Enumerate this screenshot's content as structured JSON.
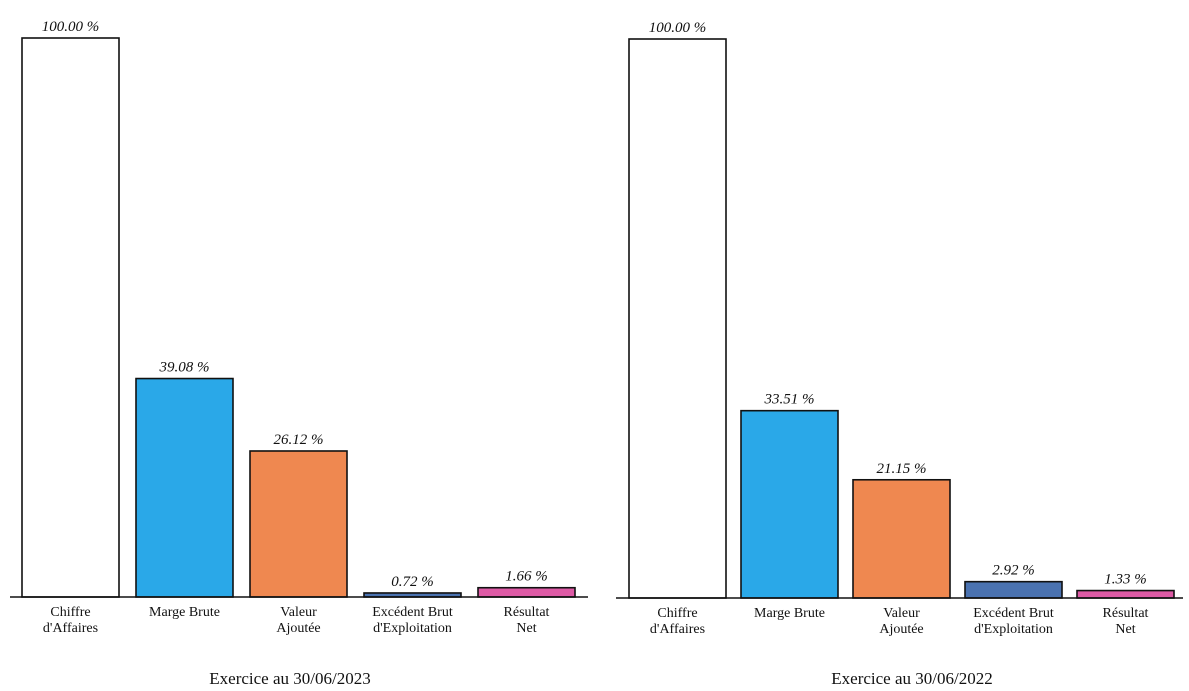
{
  "colors": {
    "chiffre": "#ffffff",
    "marge": "#2aa8e8",
    "valeur": "#ef8850",
    "ebe": "#4a72b0",
    "resultat": "#dd5aa5",
    "stroke": "#111111"
  },
  "chart_data": [
    {
      "type": "bar",
      "caption": "Exercice au  30/06/2023",
      "categories": [
        [
          "Chiffre",
          "d'Affaires"
        ],
        [
          "Marge Brute"
        ],
        [
          "Valeur",
          "Ajoutée"
        ],
        [
          "Excédent Brut",
          "d'Exploitation"
        ],
        [
          "Résultat",
          "Net"
        ]
      ],
      "values": [
        100.0,
        39.08,
        26.12,
        0.72,
        1.66
      ],
      "value_labels": [
        "100.00 %",
        "39.08 %",
        "26.12 %",
        "0.72 %",
        "1.66 %"
      ],
      "ylim": [
        0,
        100
      ]
    },
    {
      "type": "bar",
      "caption": "Exercice au  30/06/2022",
      "categories": [
        [
          "Chiffre",
          "d'Affaires"
        ],
        [
          "Marge Brute"
        ],
        [
          "Valeur",
          "Ajoutée"
        ],
        [
          "Excédent Brut",
          "d'Exploitation"
        ],
        [
          "Résultat",
          "Net"
        ]
      ],
      "values": [
        100.0,
        33.51,
        21.15,
        2.92,
        1.33
      ],
      "value_labels": [
        "100.00 %",
        "33.51 %",
        "21.15 %",
        "2.92 %",
        "1.33 %"
      ],
      "ylim": [
        0,
        100
      ]
    }
  ]
}
